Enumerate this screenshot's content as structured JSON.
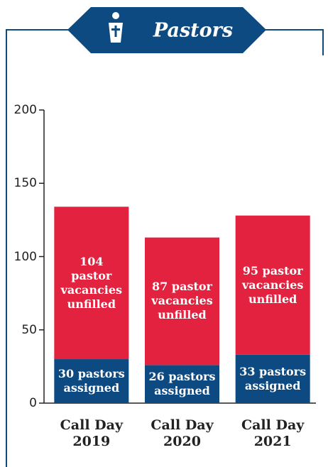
{
  "chart_data": {
    "type": "stacked_bar",
    "title": "Pastors",
    "categories": [
      "Call Day 2019",
      "Call Day 2020",
      "Call Day 2021"
    ],
    "series": [
      {
        "name": "assigned",
        "color": "#0d4a82",
        "values": [
          30,
          26,
          33
        ],
        "value_labels": [
          "30 pastors assigned",
          "26 pastors assigned",
          "33 pastors assigned"
        ]
      },
      {
        "name": "unfilled",
        "color": "#e2223f",
        "values": [
          104,
          87,
          95
        ],
        "value_labels": [
          "104 pastor vacancies unfilled",
          "87 pastor vacancies unfilled",
          "95 pastor vacancies unfilled"
        ]
      }
    ],
    "ylim": [
      0,
      200
    ],
    "yticks": [
      0,
      50,
      100,
      150,
      200
    ]
  }
}
